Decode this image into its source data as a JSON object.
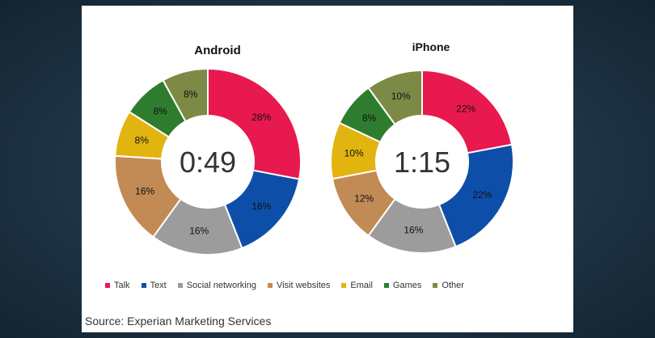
{
  "chart_data": [
    {
      "type": "pie",
      "title": "Android",
      "center_label": "0:49",
      "categories": [
        "Talk",
        "Text",
        "Social networking",
        "Visit websites",
        "Email",
        "Games",
        "Other"
      ],
      "values": [
        28,
        16,
        16,
        16,
        8,
        8,
        8
      ],
      "value_labels": [
        "28%",
        "16%",
        "16%",
        "16%",
        "8%",
        "8%",
        "8%"
      ]
    },
    {
      "type": "pie",
      "title": "iPhone",
      "center_label": "1:15",
      "categories": [
        "Talk",
        "Text",
        "Social networking",
        "Visit websites",
        "Email",
        "Games",
        "Other"
      ],
      "values": [
        22,
        22,
        16,
        12,
        10,
        8,
        10
      ],
      "value_labels": [
        "22%",
        "22%",
        "16%",
        "12%",
        "10%",
        "8%",
        "10%"
      ]
    }
  ],
  "legend": [
    {
      "label": "Talk",
      "color": "#e8194f"
    },
    {
      "label": "Text",
      "color": "#0d4fa8"
    },
    {
      "label": "Social networking",
      "color": "#9c9c9c"
    },
    {
      "label": "Visit websites",
      "color": "#c28a54"
    },
    {
      "label": "Email",
      "color": "#e2b410"
    },
    {
      "label": "Games",
      "color": "#2e7d2e"
    },
    {
      "label": "Other",
      "color": "#7c8a46"
    }
  ],
  "source": "Source: Experian Marketing Services"
}
